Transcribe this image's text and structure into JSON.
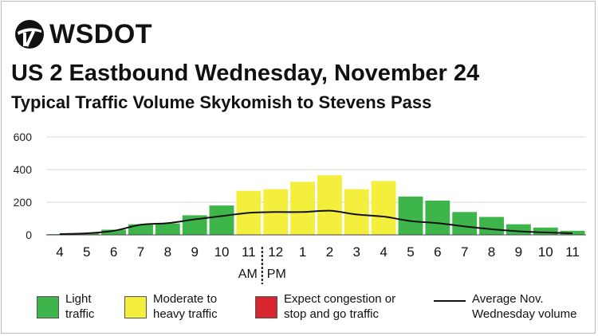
{
  "brand": {
    "name": "WSDOT"
  },
  "title": "US 2 Eastbound Wednesday, November 24",
  "subtitle": "Typical Traffic Volume Skykomish to Stevens Pass",
  "colors": {
    "light": "#3db54a",
    "moderate": "#f4ee3c",
    "congestion": "#d7262e",
    "line": "#111111",
    "grid": "#d9d9d9"
  },
  "chart_data": {
    "type": "bar",
    "categories": [
      "4",
      "5",
      "6",
      "7",
      "8",
      "9",
      "10",
      "11",
      "12",
      "1",
      "2",
      "3",
      "4",
      "5",
      "6",
      "7",
      "8",
      "9",
      "10",
      "11"
    ],
    "values": [
      5,
      12,
      32,
      65,
      70,
      120,
      180,
      270,
      280,
      325,
      365,
      280,
      330,
      235,
      210,
      140,
      110,
      65,
      45,
      25
    ],
    "levels": [
      "light",
      "light",
      "light",
      "light",
      "light",
      "light",
      "light",
      "moderate",
      "moderate",
      "moderate",
      "moderate",
      "moderate",
      "moderate",
      "light",
      "light",
      "light",
      "light",
      "light",
      "light",
      "light"
    ],
    "series": [
      {
        "name": "Average Nov. Wednesday volume",
        "type": "line",
        "values": [
          5,
          10,
          25,
          62,
          72,
          95,
          115,
          135,
          140,
          140,
          148,
          125,
          112,
          85,
          72,
          52,
          35,
          22,
          15,
          10
        ]
      }
    ],
    "yticks": [
      0,
      200,
      400,
      600
    ],
    "ylim": [
      0,
      600
    ],
    "am_label": "AM",
    "pm_label": "PM",
    "grid": true
  },
  "legend": {
    "light": "Light\ntraffic",
    "moderate": "Moderate to\nheavy traffic",
    "congestion": "Expect congestion or\nstop and go traffic",
    "line": "Average Nov.\nWednesday volume"
  }
}
